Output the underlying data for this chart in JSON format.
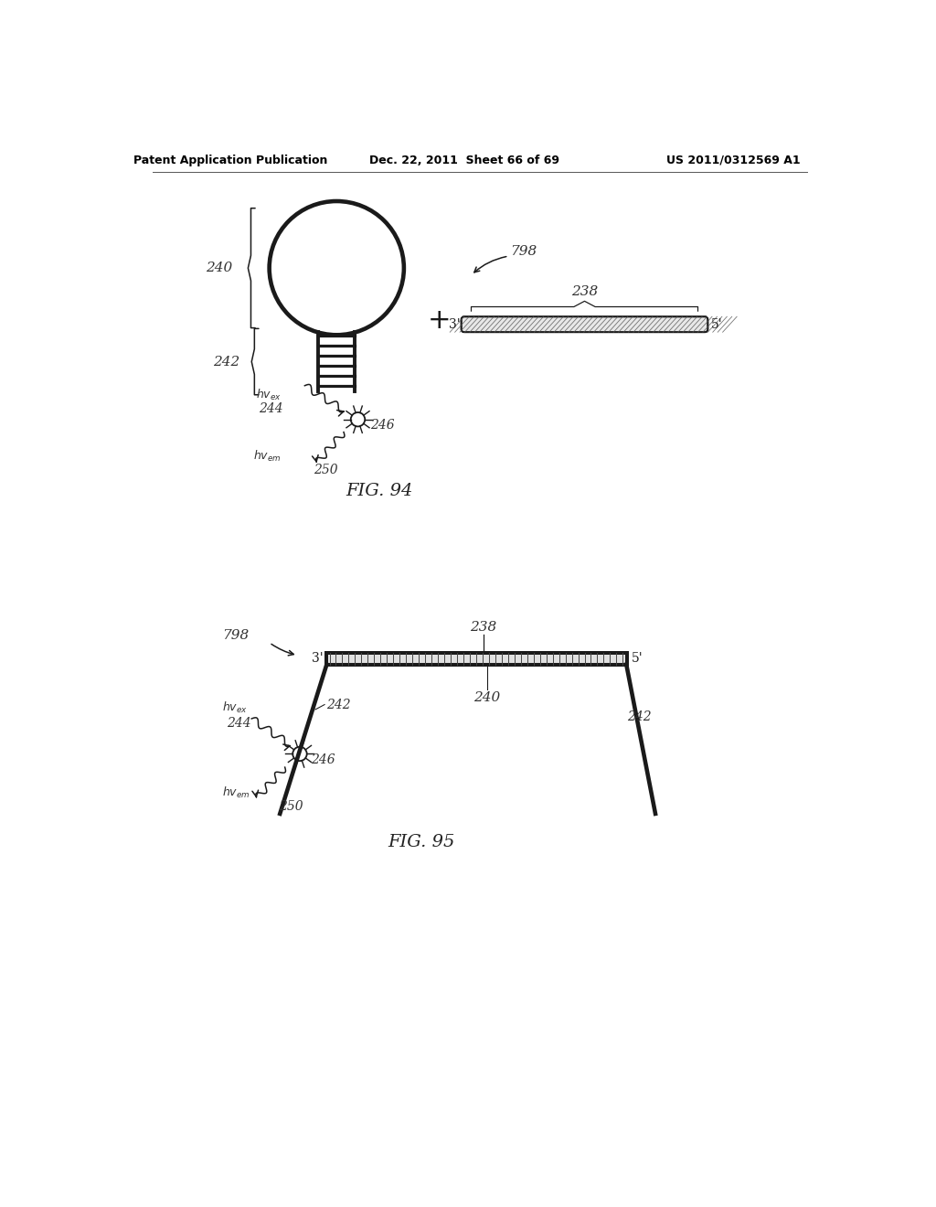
{
  "bg_color": "#ffffff",
  "header_left": "Patent Application Publication",
  "header_mid": "Dec. 22, 2011  Sheet 66 of 69",
  "header_right": "US 2011/0312569 A1",
  "fig94_label": "FIG. 94",
  "fig95_label": "FIG. 95",
  "line_color": "#1a1a1a",
  "line_width": 2.8,
  "thin_line": 1.1,
  "label_fontsize": 11,
  "header_fontsize": 9
}
